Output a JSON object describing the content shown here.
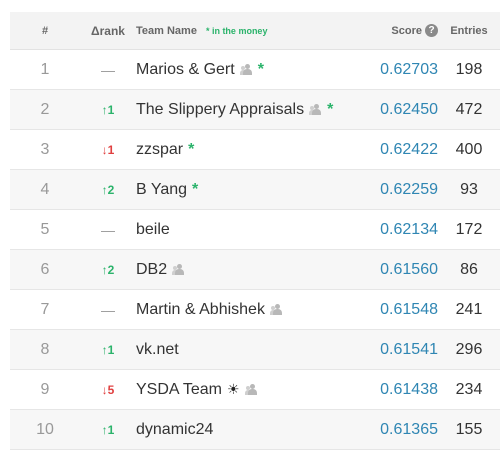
{
  "colors": {
    "up": "#2bb36b",
    "down": "#e04040",
    "neutral": "#999999",
    "score": "#2f86b3"
  },
  "header": {
    "rank": "#",
    "delta": "Δrank",
    "team": "Team Name",
    "money_note": "* in the money",
    "score": "Score",
    "score_help_icon": "question-circle-icon",
    "entries": "Entries"
  },
  "rows": [
    {
      "rank": "1",
      "delta": "—",
      "dir": "none",
      "team": "Marios & Gert",
      "team_icon": true,
      "sun": false,
      "money": "*",
      "score": "0.62703",
      "entries": "198"
    },
    {
      "rank": "2",
      "delta": "↑1",
      "dir": "up",
      "team": "The Slippery Appraisals",
      "team_icon": true,
      "sun": false,
      "money": "*",
      "score": "0.62450",
      "entries": "472"
    },
    {
      "rank": "3",
      "delta": "↓1",
      "dir": "down",
      "team": "zzspar",
      "team_icon": false,
      "sun": false,
      "money": "*",
      "score": "0.62422",
      "entries": "400"
    },
    {
      "rank": "4",
      "delta": "↑2",
      "dir": "up",
      "team": "B Yang",
      "team_icon": false,
      "sun": false,
      "money": "*",
      "score": "0.62259",
      "entries": "93"
    },
    {
      "rank": "5",
      "delta": "—",
      "dir": "none",
      "team": "beile",
      "team_icon": false,
      "sun": false,
      "money": "",
      "score": "0.62134",
      "entries": "172"
    },
    {
      "rank": "6",
      "delta": "↑2",
      "dir": "up",
      "team": "DB2",
      "team_icon": true,
      "sun": false,
      "money": "",
      "score": "0.61560",
      "entries": "86"
    },
    {
      "rank": "7",
      "delta": "—",
      "dir": "none",
      "team": "Martin & Abhishek",
      "team_icon": true,
      "sun": false,
      "money": "",
      "score": "0.61548",
      "entries": "241"
    },
    {
      "rank": "8",
      "delta": "↑1",
      "dir": "up",
      "team": "vk.net",
      "team_icon": false,
      "sun": false,
      "money": "",
      "score": "0.61541",
      "entries": "296"
    },
    {
      "rank": "9",
      "delta": "↓5",
      "dir": "down",
      "team": "YSDA Team",
      "team_icon": true,
      "sun": true,
      "money": "",
      "score": "0.61438",
      "entries": "234"
    },
    {
      "rank": "10",
      "delta": "↑1",
      "dir": "up",
      "team": "dynamic24",
      "team_icon": false,
      "sun": false,
      "money": "",
      "score": "0.61365",
      "entries": "155"
    }
  ]
}
